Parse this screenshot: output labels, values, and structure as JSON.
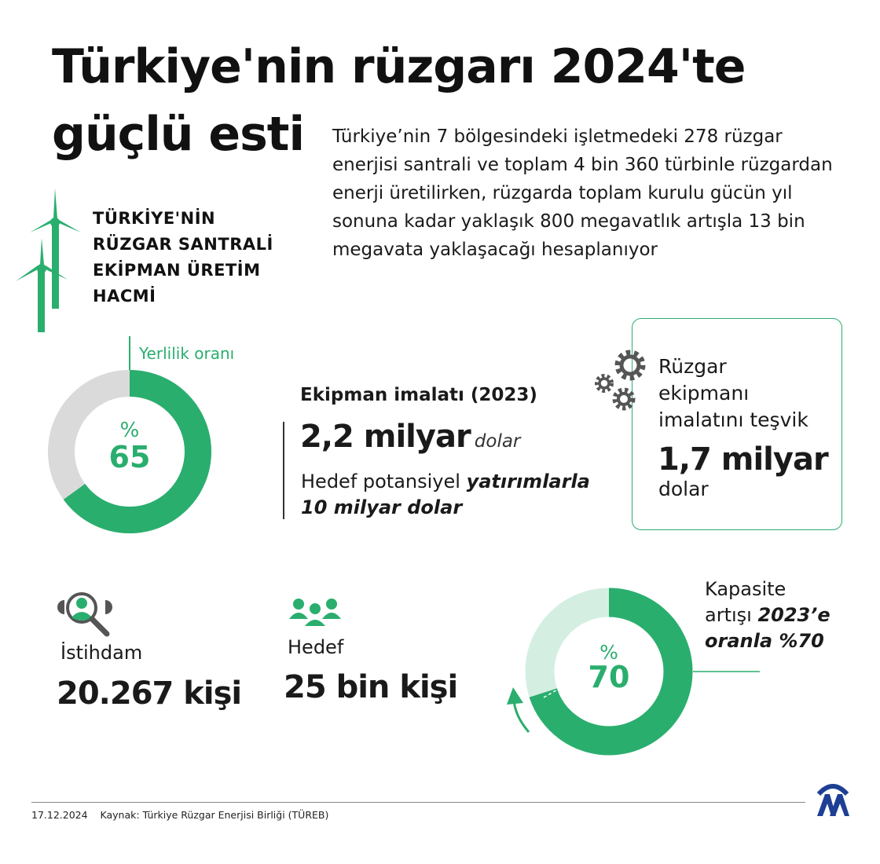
{
  "title": {
    "line1": "Türkiye'nin rüzgarı 2024'te",
    "line2": "güçlü esti"
  },
  "intro": "Türkiye’nin 7 bölgesindeki işletmedeki 278 rüzgar enerjisi santrali ve toplam 4 bin 360 türbinle rüzgardan enerji üretilirken, rüzgarda toplam kurulu gücün yıl sonuna kadar yaklaşık 800 megavatlık artışla 13 bin megavata yaklaşacağı hesaplanıyor",
  "subheading": [
    "TÜRKİYE'NİN",
    "RÜZGAR SANTRALİ",
    "EKİPMAN ÜRETİM",
    "HACMİ"
  ],
  "localization": {
    "label": "Yerlilik oranı",
    "percent_sign": "%",
    "value_label": "65",
    "value": 65
  },
  "equipment": {
    "heading": "Ekipman imalatı (2023)",
    "amount": "2,2 milyar",
    "unit": "dolar",
    "target_prefix": "Hedef potansiyel ",
    "target_emph": "yatırımlarla",
    "target_line2": "10 milyar dolar"
  },
  "incentive": {
    "lines": [
      "Rüzgar",
      "ekipmanı",
      "imalatını teşvik"
    ],
    "amount": "1,7 milyar",
    "unit": "dolar"
  },
  "employment": {
    "label": "İstihdam",
    "value": "20.267 kişi"
  },
  "target": {
    "label": "Hedef",
    "value": "25 bin kişi"
  },
  "capacity": {
    "line1": "Kapasite",
    "line2_prefix": "artışı ",
    "line2_emph": "2023’e",
    "line3": "oranla %70",
    "percent_sign": "%",
    "value_label": "70",
    "value": 70
  },
  "footer": {
    "date": "17.12.2024",
    "source": "Kaynak: Türkiye Rüzgar Enerjisi Birliği (TÜREB)",
    "logo_text": "AA"
  },
  "colors": {
    "accent": "#2aae6e",
    "donut_rest_gray": "#dadada",
    "donut_rest_light_green": "#d4efe2",
    "logo_blue": "#1d3f94"
  },
  "icons": [
    "wind-turbine-icon",
    "gears-icon",
    "search-person-icon",
    "people-group-icon",
    "arrow-up-icon",
    "aa-logo"
  ]
}
